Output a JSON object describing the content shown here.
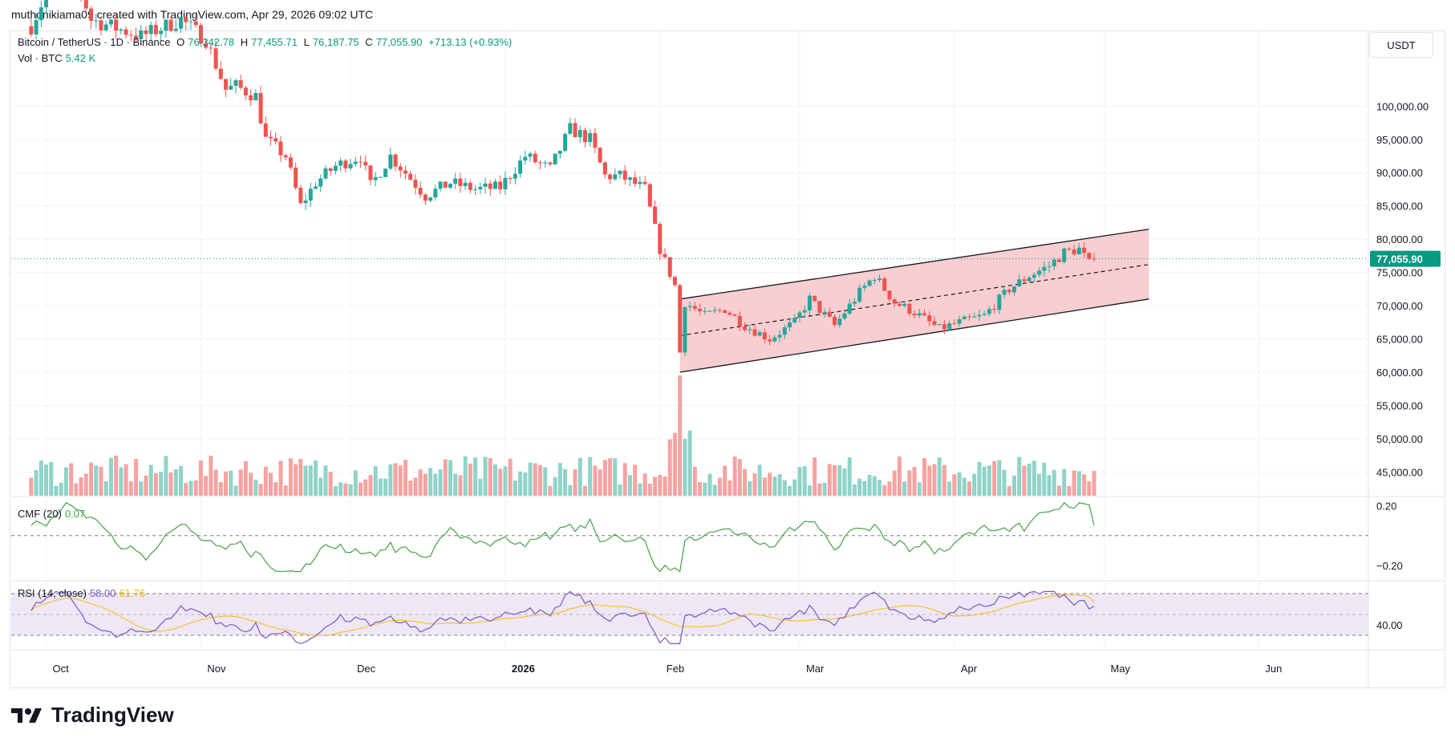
{
  "header": {
    "credit": "muthonikiama09 created with TradingView.com, Apr 29, 2026 09:02 UTC"
  },
  "legend": {
    "symbol": "Bitcoin / TetherUS · 1D · Binance",
    "o_label": "O",
    "o_value": "76,342.78",
    "h_label": "H",
    "h_value": "77,455.71",
    "l_label": "L",
    "l_value": "76,187.75",
    "c_label": "C",
    "c_value": "77,055.90",
    "change": "+713.13 (+0.93%)",
    "vol_label": "Vol · BTC",
    "vol_value": "5.42 K",
    "cmf_label": "CMF (20)",
    "cmf_value": "0.07",
    "rsi_label": "RSI (14, close)",
    "rsi_value": "58.00",
    "rsi_ma_value": "61.76"
  },
  "currency_button": "USDT",
  "brand": {
    "name": "TradingView",
    "icon": "tradingview-logo-icon"
  },
  "colors": {
    "up": "#26a69a",
    "down": "#ef5350",
    "vol_up": "#8fd3c9",
    "vol_down": "#f5a3a1",
    "channel_fill": "#f7c5c9",
    "cmf_line": "#43a047",
    "rsi_line": "#7e57c2",
    "rsi_ma": "#fbc02d",
    "rsi_band": "#ede7f6",
    "last_price_bg": "#089981"
  },
  "chart_data": {
    "type": "candlestick",
    "title": "Bitcoin / TetherUS · 1D · Binance",
    "price_axis": {
      "labels": [
        "100,000.00",
        "95,000.00",
        "90,000.00",
        "85,000.00",
        "80,000.00",
        "75,000.00",
        "70,000.00",
        "65,000.00",
        "60,000.00",
        "55,000.00",
        "50,000.00",
        "45,000.00"
      ],
      "range": [
        43000,
        104500
      ]
    },
    "last_price": "77,055.90",
    "time_axis": {
      "labels": [
        "Oct",
        "Nov",
        "Dec",
        "2026",
        "Feb",
        "Mar",
        "Apr",
        "May",
        "Jun"
      ],
      "bold": [
        "2026"
      ]
    },
    "anchors": [
      {
        "date": "2025-09-28",
        "close": 112000
      },
      {
        "date": "2025-10-05",
        "close": 123500
      },
      {
        "date": "2025-10-10",
        "close": 113000
      },
      {
        "date": "2025-10-20",
        "close": 110500
      },
      {
        "date": "2025-10-28",
        "close": 113000
      },
      {
        "date": "2025-11-02",
        "close": 110000
      },
      {
        "date": "2025-11-06",
        "close": 102500
      },
      {
        "date": "2025-11-08",
        "close": 103000
      },
      {
        "date": "2025-11-12",
        "close": 101500
      },
      {
        "date": "2025-11-14",
        "close": 95000
      },
      {
        "date": "2025-11-18",
        "close": 92500
      },
      {
        "date": "2025-11-21",
        "close": 85000
      },
      {
        "date": "2025-11-24",
        "close": 88500
      },
      {
        "date": "2025-11-28",
        "close": 91000
      },
      {
        "date": "2025-12-03",
        "close": 92500
      },
      {
        "date": "2025-12-05",
        "close": 88000
      },
      {
        "date": "2025-12-09",
        "close": 92500
      },
      {
        "date": "2025-12-12",
        "close": 90000
      },
      {
        "date": "2025-12-16",
        "close": 86500
      },
      {
        "date": "2025-12-21",
        "close": 88500
      },
      {
        "date": "2025-12-26",
        "close": 87500
      },
      {
        "date": "2025-12-31",
        "close": 87800
      },
      {
        "date": "2026-01-05",
        "close": 92500
      },
      {
        "date": "2026-01-10",
        "close": 90500
      },
      {
        "date": "2026-01-14",
        "close": 96500
      },
      {
        "date": "2026-01-18",
        "close": 95000
      },
      {
        "date": "2026-01-21",
        "close": 89500
      },
      {
        "date": "2026-01-24",
        "close": 89500
      },
      {
        "date": "2026-01-29",
        "close": 87500
      },
      {
        "date": "2026-02-01",
        "close": 78500
      },
      {
        "date": "2026-02-04",
        "close": 73000
      },
      {
        "date": "2026-02-05",
        "close": 63000
      },
      {
        "date": "2026-02-06",
        "close": 70500
      },
      {
        "date": "2026-02-10",
        "close": 68500
      },
      {
        "date": "2026-02-14",
        "close": 69500
      },
      {
        "date": "2026-02-18",
        "close": 67000
      },
      {
        "date": "2026-02-23",
        "close": 65000
      },
      {
        "date": "2026-02-28",
        "close": 67500
      },
      {
        "date": "2026-03-03",
        "close": 71000
      },
      {
        "date": "2026-03-08",
        "close": 67000
      },
      {
        "date": "2026-03-13",
        "close": 72000
      },
      {
        "date": "2026-03-16",
        "close": 74500
      },
      {
        "date": "2026-03-20",
        "close": 70500
      },
      {
        "date": "2026-03-24",
        "close": 69000
      },
      {
        "date": "2026-03-29",
        "close": 66500
      },
      {
        "date": "2026-04-02",
        "close": 67500
      },
      {
        "date": "2026-04-07",
        "close": 68500
      },
      {
        "date": "2026-04-12",
        "close": 72500
      },
      {
        "date": "2026-04-16",
        "close": 74500
      },
      {
        "date": "2026-04-20",
        "close": 76000
      },
      {
        "date": "2026-04-23",
        "close": 78000
      },
      {
        "date": "2026-04-26",
        "close": 78500
      },
      {
        "date": "2026-04-28",
        "close": 76300
      },
      {
        "date": "2026-04-29",
        "close": 77056
      }
    ],
    "channel": {
      "start_date": "2026-02-05",
      "end_date": "2026-05-10",
      "upper": [
        71000,
        81500
      ],
      "mid": [
        65500,
        76200
      ],
      "lower": [
        60000,
        71000
      ]
    },
    "volume_panel": {
      "label": "Vol · BTC",
      "spike_date": "2026-02-05"
    },
    "cmf_panel": {
      "label": "CMF (20)",
      "axis_labels": [
        "0.20",
        "−0.20"
      ],
      "range": [
        -0.28,
        0.24
      ],
      "last": 0.07
    },
    "rsi_panel": {
      "label": "RSI (14, close)",
      "axis_labels": [
        "40.00"
      ],
      "range": [
        20,
        80
      ],
      "band": [
        30,
        70
      ],
      "last": 58.0,
      "ma_last": 61.76
    }
  }
}
